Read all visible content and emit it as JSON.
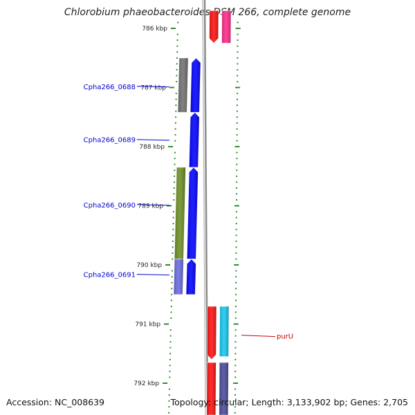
{
  "title": "Chlorobium phaeobacteroides DSM 266, complete genome",
  "footer": {
    "accession": "Accession: NC_008639",
    "summary": "Topology: circular; Length: 3,133,902 bp; Genes: 2,705"
  },
  "colors": {
    "ring": "#8a8a8a",
    "ticks": "#2e8b2e",
    "tick_text": "#222222",
    "label_blue": "#0000cc",
    "label_red": "#cc0000"
  },
  "scale": {
    "unit": "kbp",
    "ticks": [
      {
        "kbp": 786,
        "label": "786 kbp"
      },
      {
        "kbp": 787,
        "label": "787 kbp"
      },
      {
        "kbp": 788,
        "label": "788 kbp"
      },
      {
        "kbp": 789,
        "label": "789 kbp"
      },
      {
        "kbp": 790,
        "label": "790 kbp"
      },
      {
        "kbp": 791,
        "label": "791 kbp"
      },
      {
        "kbp": 792,
        "label": "792 kbp"
      }
    ]
  },
  "features": [
    {
      "track": "inner-outer",
      "start_kbp": 785.7,
      "end_kbp": 786.25,
      "color": "#ff1010",
      "arrow": "down"
    },
    {
      "track": "inner-inner",
      "start_kbp": 785.7,
      "end_kbp": 786.25,
      "color": "#ff2a8a",
      "arrow": "none"
    },
    {
      "track": "cog",
      "start_kbp": 786.5,
      "end_kbp": 787.42,
      "color": "#707070",
      "arrow": "none"
    },
    {
      "track": "cds",
      "start_kbp": 786.5,
      "end_kbp": 787.42,
      "color": "#0000ff",
      "arrow": "up"
    },
    {
      "track": "cds",
      "start_kbp": 787.42,
      "end_kbp": 788.35,
      "color": "#0000ff",
      "arrow": "up"
    },
    {
      "track": "cog",
      "start_kbp": 788.35,
      "end_kbp": 789.9,
      "color": "#6b8e23",
      "arrow": "none"
    },
    {
      "track": "cds",
      "start_kbp": 788.35,
      "end_kbp": 789.9,
      "color": "#0000ff",
      "arrow": "up"
    },
    {
      "track": "cog",
      "start_kbp": 789.9,
      "end_kbp": 790.5,
      "color": "#6a6ae0",
      "arrow": "none"
    },
    {
      "track": "cds",
      "start_kbp": 789.9,
      "end_kbp": 790.5,
      "color": "#0000ff",
      "arrow": "up"
    },
    {
      "track": "inner-outer",
      "start_kbp": 790.7,
      "end_kbp": 791.6,
      "color": "#ff1010",
      "arrow": "down"
    },
    {
      "track": "inner-inner",
      "start_kbp": 790.7,
      "end_kbp": 791.55,
      "color": "#14c8f0",
      "arrow": "none"
    },
    {
      "track": "inner-outer",
      "start_kbp": 791.65,
      "end_kbp": 792.6,
      "color": "#ff1010",
      "arrow": "none"
    },
    {
      "track": "inner-inner",
      "start_kbp": 791.65,
      "end_kbp": 792.6,
      "color": "#4a4a9a",
      "arrow": "none"
    }
  ],
  "labels": [
    {
      "text": "Cpha266_0688",
      "kbp": 786.98,
      "side": "left",
      "color": "#0000cc"
    },
    {
      "text": "Cpha266_0689",
      "kbp": 787.88,
      "side": "left",
      "color": "#0000cc"
    },
    {
      "text": "Cpha266_0690",
      "kbp": 788.98,
      "side": "left",
      "color": "#0000cc"
    },
    {
      "text": "Cpha266_0691",
      "kbp": 790.16,
      "side": "left",
      "color": "#0000cc"
    },
    {
      "text": "purU",
      "kbp": 791.2,
      "side": "right",
      "color": "#cc0000"
    }
  ]
}
